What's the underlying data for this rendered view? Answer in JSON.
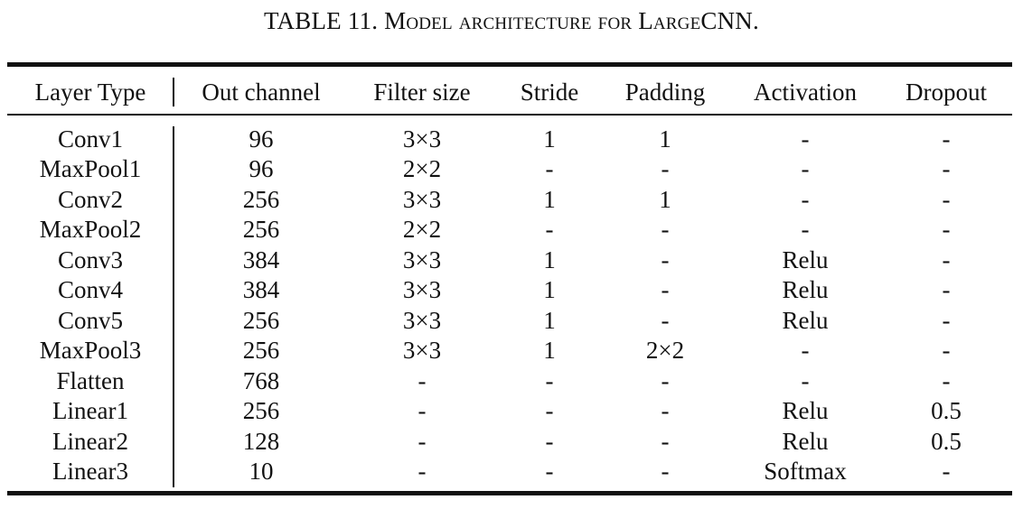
{
  "caption": {
    "label": "TABLE 11.",
    "title": "Model architecture for LargeCNN."
  },
  "table": {
    "columns": [
      "Layer Type",
      "Out channel",
      "Filter size",
      "Stride",
      "Padding",
      "Activation",
      "Dropout"
    ],
    "rows": [
      [
        "Conv1",
        "96",
        "3×3",
        "1",
        "1",
        "-",
        "-"
      ],
      [
        "MaxPool1",
        "96",
        "2×2",
        "-",
        "-",
        "-",
        "-"
      ],
      [
        "Conv2",
        "256",
        "3×3",
        "1",
        "1",
        "-",
        "-"
      ],
      [
        "MaxPool2",
        "256",
        "2×2",
        "-",
        "-",
        "-",
        "-"
      ],
      [
        "Conv3",
        "384",
        "3×3",
        "1",
        "-",
        "Relu",
        "-"
      ],
      [
        "Conv4",
        "384",
        "3×3",
        "1",
        "-",
        "Relu",
        "-"
      ],
      [
        "Conv5",
        "256",
        "3×3",
        "1",
        "-",
        "Relu",
        "-"
      ],
      [
        "MaxPool3",
        "256",
        "3×3",
        "1",
        "2×2",
        "-",
        "-"
      ],
      [
        "Flatten",
        "768",
        "-",
        "-",
        "-",
        "-",
        "-"
      ],
      [
        "Linear1",
        "256",
        "-",
        "-",
        "-",
        "Relu",
        "0.5"
      ],
      [
        "Linear2",
        "128",
        "-",
        "-",
        "-",
        "Relu",
        "0.5"
      ],
      [
        "Linear3",
        "10",
        "-",
        "-",
        "-",
        "Softmax",
        "-"
      ]
    ]
  }
}
